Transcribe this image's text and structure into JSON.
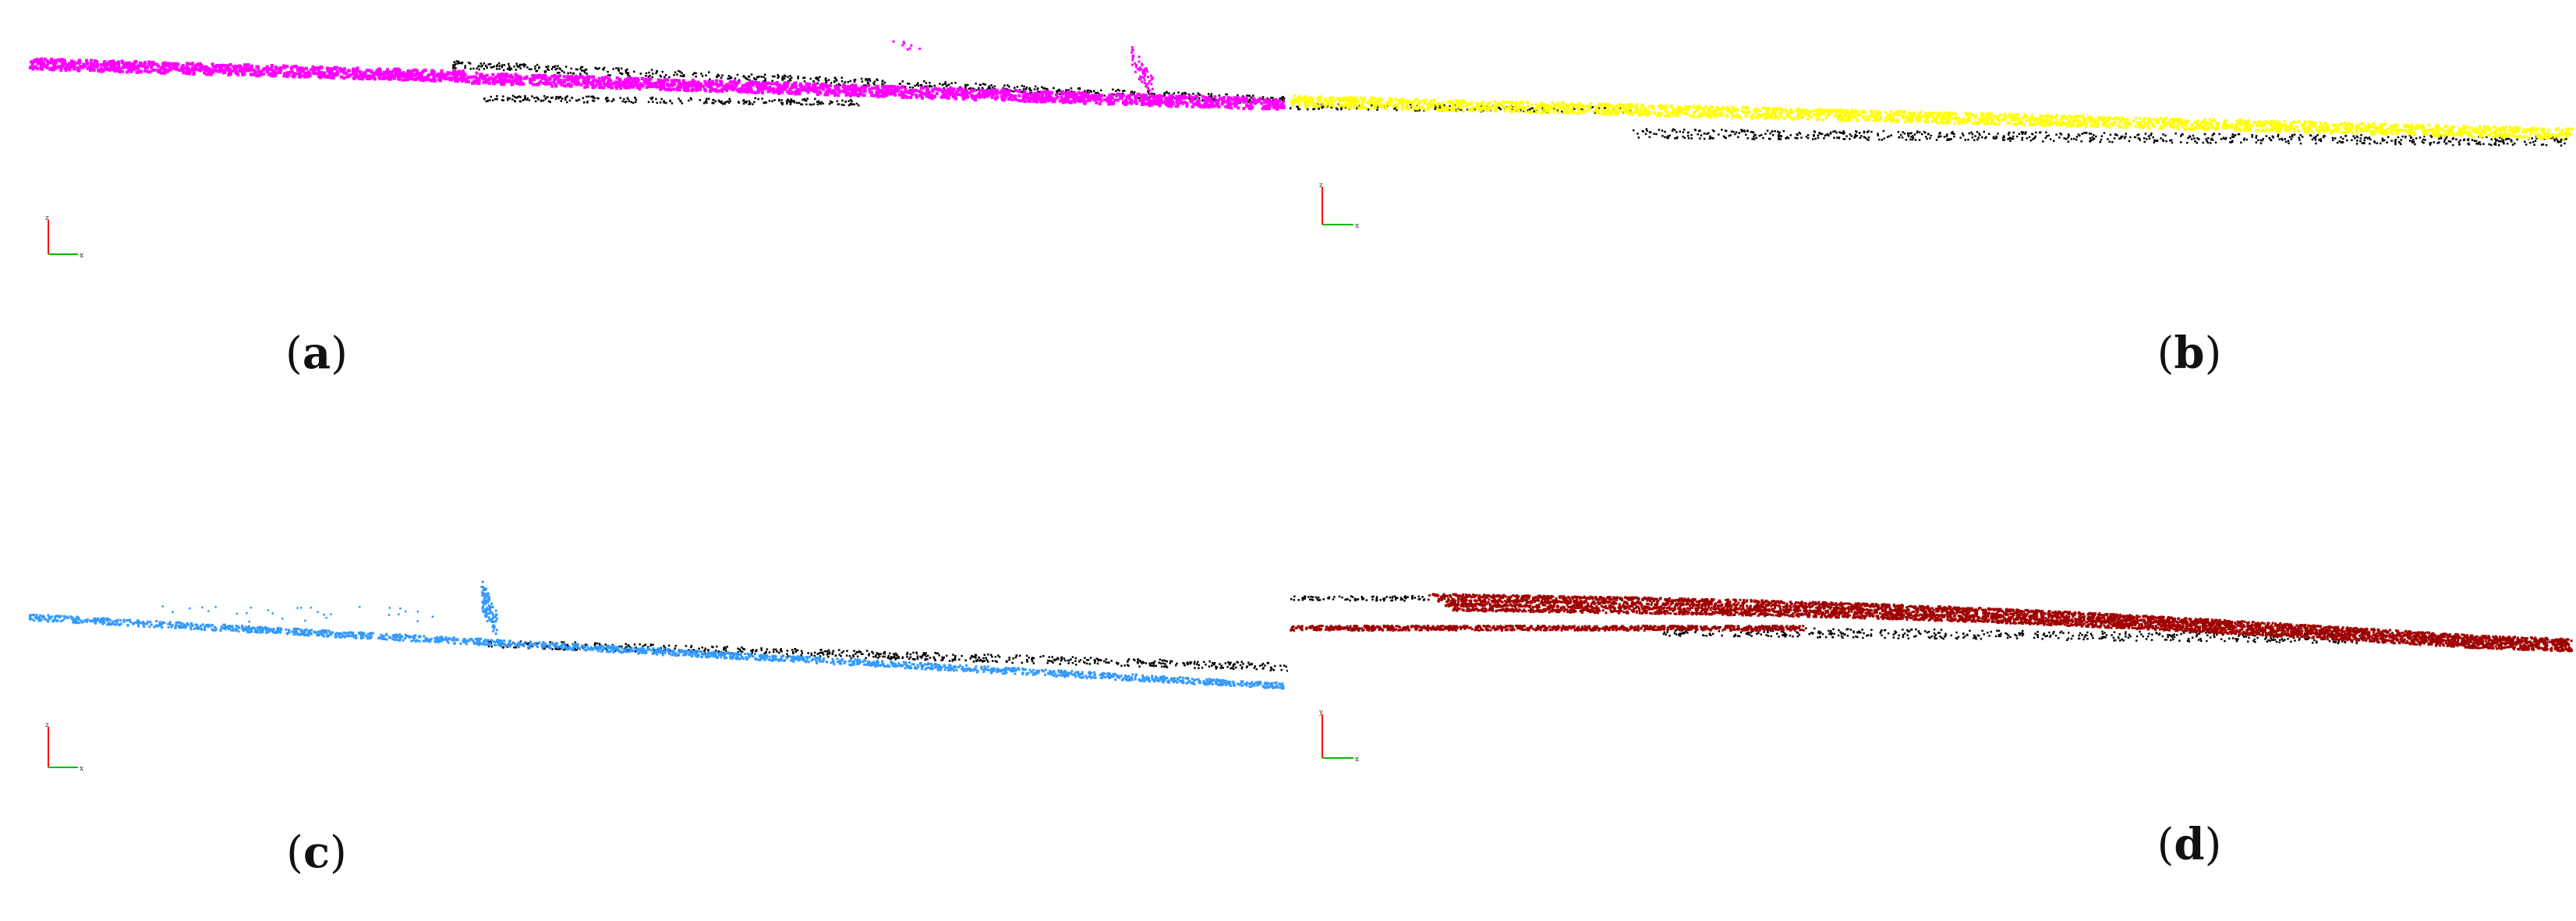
{
  "panels": [
    {
      "id": "a",
      "caption_open": "(",
      "caption_letter": "a",
      "caption_close": ")",
      "color": "#ff00ff"
    },
    {
      "id": "b",
      "caption_open": "(",
      "caption_letter": "b",
      "caption_close": ")",
      "color": "#ffff00"
    },
    {
      "id": "c",
      "caption_open": "(",
      "caption_letter": "c",
      "caption_close": ")",
      "color": "#3399ff"
    },
    {
      "id": "d",
      "caption_open": "(",
      "caption_letter": "d",
      "caption_close": ")",
      "color": "#a00000"
    }
  ],
  "axis_triad": {
    "vertical_label": "z",
    "horizontal_label": "x",
    "vertical_color": "#ff0000",
    "horizontal_color": "#00bb00"
  },
  "axis_triad_d": {
    "vertical_label": "y",
    "horizontal_label": "x"
  },
  "background_points_color": "#000000"
}
